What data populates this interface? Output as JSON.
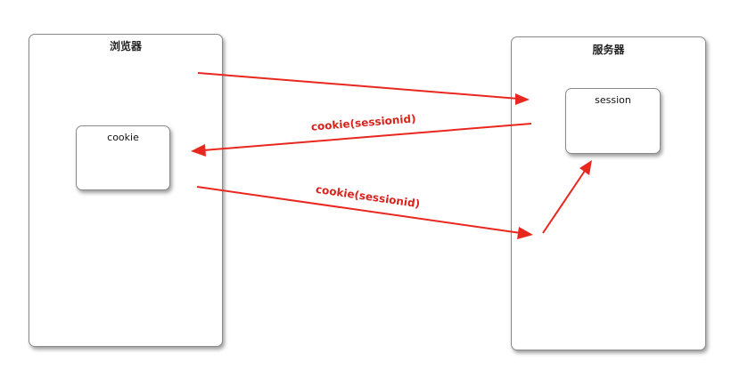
{
  "diagram": {
    "browser": {
      "title": "浏览器"
    },
    "server": {
      "title": "服务器"
    },
    "cookie": {
      "label": "cookie"
    },
    "session": {
      "label": "session"
    },
    "arrows": [
      {
        "from": "browser",
        "to": "server",
        "label": ""
      },
      {
        "from": "server",
        "to": "browser",
        "label": "cookie(sessionid)"
      },
      {
        "from": "browser",
        "to": "server",
        "label": "cookie(sessionid)"
      },
      {
        "from": "server-entry",
        "to": "session",
        "label": ""
      }
    ],
    "colors": {
      "arrow": "#e8281f",
      "label": "#d8241c",
      "box_border": "#8a8a8a"
    }
  }
}
